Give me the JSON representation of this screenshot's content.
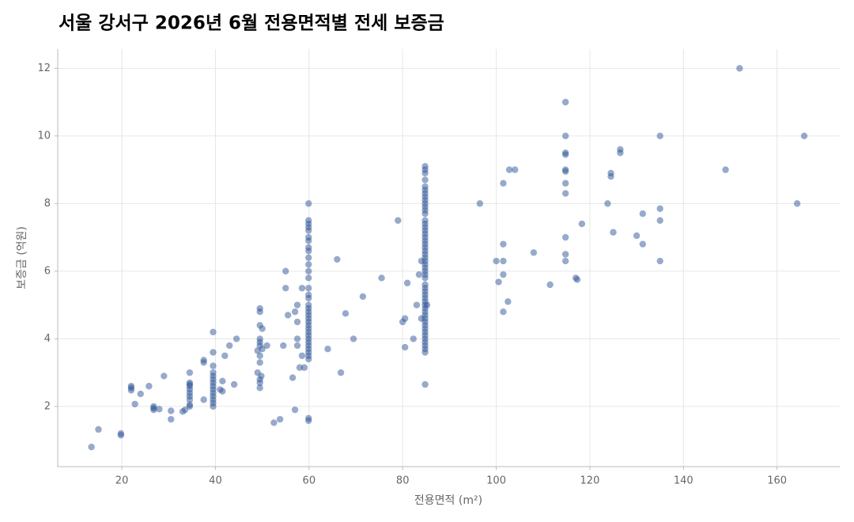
{
  "chart_data": {
    "type": "scatter",
    "title": "서울 강서구 2026년 6월 전용면적별 전세 보증금",
    "x_label": "전용면적 (m²)",
    "y_label": "보증금 (억원)",
    "color": "#2f5597",
    "grid": true,
    "xlim": [
      6.3,
      173.4
    ],
    "ylim": [
      0.22,
      12.57
    ],
    "xticks": [
      20,
      40,
      60,
      80,
      100,
      120,
      140,
      160
    ],
    "yticks": [
      2,
      4,
      6,
      8,
      10,
      12
    ],
    "x": [
      13.5,
      15,
      19.8,
      19.8,
      22,
      22,
      22,
      22.8,
      24,
      25.8,
      26.8,
      26.8,
      26.8,
      28,
      29,
      30.5,
      30.5,
      33,
      33.5,
      34.5,
      34.5,
      34.5,
      34.5,
      34.5,
      34.5,
      34.5,
      34.5,
      34.5,
      34.5,
      37.5,
      37.5,
      37.5,
      39.5,
      39.5,
      39.5,
      39.5,
      39.5,
      39.5,
      39.5,
      39.5,
      39.5,
      39.5,
      39.5,
      39.5,
      39.5,
      39.5,
      41,
      41.5,
      41.5,
      42,
      43,
      44,
      44.5,
      49,
      49,
      49.5,
      49.5,
      49.5,
      49.5,
      49.5,
      49.5,
      49.5,
      49.5,
      49.5,
      49.5,
      49.5,
      49.8,
      50,
      50,
      51,
      52.5,
      53.8,
      54.5,
      55,
      55,
      55.5,
      56.5,
      57,
      57,
      57.5,
      57.5,
      57.5,
      57.5,
      58,
      58.5,
      58.5,
      59,
      59.9,
      59.9,
      59.9,
      59.9,
      59.9,
      59.9,
      59.9,
      59.9,
      59.9,
      59.9,
      59.9,
      59.9,
      59.9,
      59.9,
      59.9,
      59.9,
      59.9,
      59.9,
      59.9,
      59.9,
      59.9,
      59.9,
      59.9,
      59.9,
      59.9,
      59.9,
      59.9,
      59.9,
      59.9,
      59.9,
      59.9,
      59.9,
      59.9,
      59.9,
      59.9,
      64,
      66,
      66.8,
      67.8,
      69.5,
      71.5,
      75.5,
      79,
      80,
      80.5,
      80.5,
      81,
      82.3,
      83,
      83.5,
      84,
      84,
      85.2,
      84.8,
      84.8,
      84.8,
      84.8,
      84.8,
      84.8,
      84.8,
      84.8,
      84.8,
      84.8,
      84.8,
      84.8,
      84.8,
      84.8,
      84.8,
      84.8,
      84.8,
      84.8,
      84.8,
      84.8,
      84.8,
      84.8,
      84.8,
      84.8,
      84.8,
      84.8,
      84.8,
      84.8,
      84.8,
      84.8,
      84.8,
      84.8,
      84.8,
      84.8,
      84.8,
      84.8,
      84.8,
      84.8,
      84.8,
      84.8,
      84.8,
      84.8,
      84.8,
      84.8,
      84.8,
      84.8,
      84.8,
      84.8,
      84.8,
      84.8,
      84.8,
      84.8,
      84.8,
      96.5,
      100,
      100.5,
      101.5,
      101.5,
      101.5,
      101.5,
      101.5,
      102.5,
      102.8,
      104,
      108,
      111.5,
      114.8,
      114.8,
      114.8,
      114.8,
      114.8,
      114.8,
      114.8,
      114.8,
      114.8,
      114.8,
      114.8,
      117,
      117.3,
      118.3,
      123.8,
      124.5,
      124.5,
      125,
      126.5,
      126.5,
      130,
      131.3,
      131.3,
      135,
      135,
      135,
      135,
      149,
      152,
      164.3,
      165.8
    ],
    "values": [
      0.8,
      1.32,
      1.15,
      1.2,
      2.6,
      2.55,
      2.48,
      2.07,
      2.37,
      2.6,
      2.0,
      1.95,
      1.9,
      1.92,
      2.9,
      1.62,
      1.87,
      1.85,
      1.9,
      3.0,
      2.7,
      2.6,
      2.5,
      2.4,
      2.3,
      2.2,
      2.05,
      2.0,
      2.65,
      3.37,
      3.3,
      2.2,
      4.2,
      3.6,
      3.2,
      3.0,
      2.9,
      2.8,
      2.7,
      2.6,
      2.5,
      2.4,
      2.3,
      2.2,
      2.1,
      2.0,
      2.5,
      2.45,
      2.75,
      3.5,
      3.8,
      2.65,
      4.0,
      3.65,
      3.0,
      4.9,
      4.8,
      4.4,
      4.0,
      3.9,
      3.8,
      3.5,
      3.3,
      2.8,
      2.7,
      2.55,
      2.9,
      4.3,
      3.7,
      3.8,
      1.52,
      1.62,
      3.8,
      6.0,
      5.5,
      4.7,
      2.85,
      1.9,
      4.8,
      5.0,
      4.5,
      4.0,
      3.8,
      3.15,
      3.5,
      5.5,
      3.15,
      8.0,
      7.5,
      7.4,
      7.3,
      7.2,
      7.0,
      6.9,
      6.7,
      6.6,
      6.4,
      6.2,
      6.0,
      5.8,
      5.5,
      5.3,
      5.2,
      5.0,
      4.9,
      4.8,
      4.7,
      4.6,
      4.5,
      4.4,
      4.3,
      4.2,
      4.1,
      4.0,
      3.9,
      3.8,
      3.7,
      3.6,
      3.5,
      3.4,
      1.65,
      1.58,
      3.7,
      6.35,
      3.0,
      4.75,
      4.0,
      5.25,
      5.8,
      7.5,
      4.5,
      3.75,
      4.6,
      5.65,
      4.0,
      5.0,
      5.9,
      6.3,
      4.6,
      5.0,
      9.1,
      9.0,
      8.9,
      8.7,
      8.5,
      8.4,
      8.3,
      8.2,
      8.1,
      8.0,
      7.9,
      7.8,
      7.7,
      7.5,
      7.4,
      7.3,
      7.2,
      7.1,
      7.0,
      6.9,
      6.8,
      6.7,
      6.6,
      6.5,
      6.4,
      6.3,
      6.2,
      6.1,
      6.0,
      5.9,
      5.8,
      5.6,
      5.5,
      5.4,
      5.3,
      5.2,
      5.1,
      5.0,
      4.9,
      4.8,
      4.7,
      4.6,
      4.5,
      4.4,
      4.3,
      4.2,
      4.1,
      4.0,
      3.9,
      3.8,
      3.7,
      3.6,
      2.65,
      8.0,
      6.3,
      5.68,
      8.6,
      6.8,
      6.3,
      5.9,
      4.8,
      5.1,
      9.0,
      9.0,
      6.55,
      5.6,
      11.0,
      10.0,
      9.5,
      9.45,
      9.0,
      8.95,
      8.6,
      8.3,
      7.0,
      6.5,
      6.3,
      5.8,
      5.75,
      7.4,
      8.0,
      8.9,
      8.8,
      7.15,
      9.6,
      9.5,
      7.05,
      7.7,
      6.8,
      10.0,
      7.85,
      7.5,
      6.3,
      9.0,
      12.0,
      8.0,
      10.0
    ]
  }
}
